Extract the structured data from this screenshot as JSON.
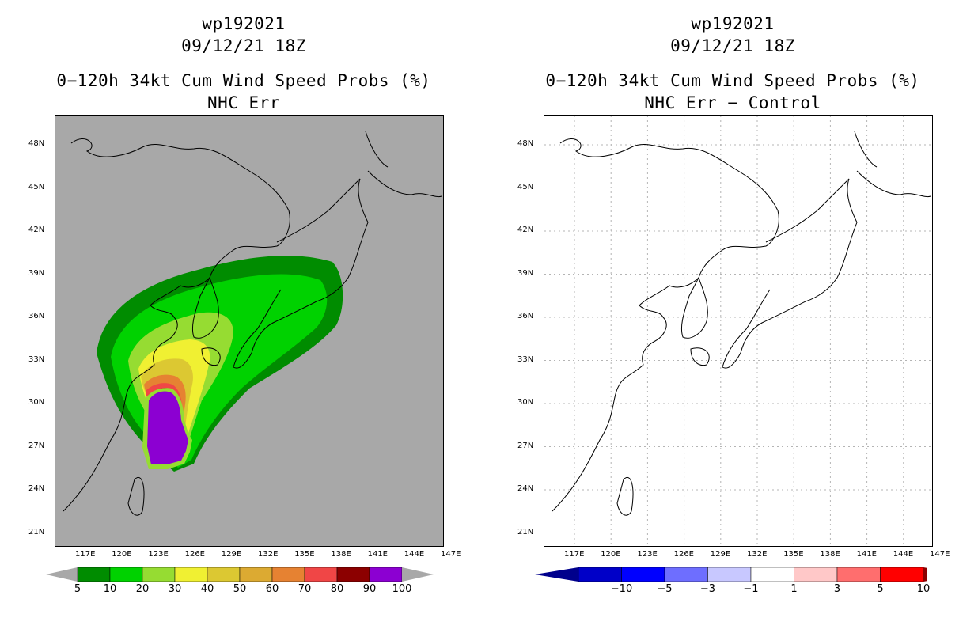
{
  "left_panel": {
    "storm_id": "wp192021",
    "datetime": "09/12/21 18Z",
    "title": "0−120h 34kt Cum Wind Speed Probs (%)",
    "subtitle": "NHC Err",
    "background": "#a8a8a8",
    "colorbar": {
      "colors": [
        "#008c00",
        "#00d200",
        "#96dc32",
        "#f0f032",
        "#dcc832",
        "#dcaa32",
        "#e68232",
        "#f04646",
        "#8c0000",
        "#8c00d2"
      ],
      "labels": [
        "5",
        "10",
        "20",
        "30",
        "40",
        "50",
        "60",
        "70",
        "80",
        "90",
        "100"
      ],
      "end_color": "#a8a8a8"
    }
  },
  "right_panel": {
    "storm_id": "wp192021",
    "datetime": "09/12/21 18Z",
    "title": "0−120h 34kt Cum Wind Speed Probs (%)",
    "subtitle": "NHC Err − Control",
    "background": "#ffffff",
    "colorbar": {
      "colors": [
        "#0000c8",
        "#0000ff",
        "#6e6eff",
        "#c8c8ff",
        "#ffffff",
        "#ffc8c8",
        "#ff6e6e",
        "#ff0000"
      ],
      "labels": [
        "−10",
        "−5",
        "−3",
        "−1",
        "1",
        "3",
        "5",
        "10"
      ],
      "end_low": "#00008c",
      "end_high": "#8c0000"
    }
  },
  "axes": {
    "lat_labels": [
      "48N",
      "45N",
      "42N",
      "39N",
      "36N",
      "33N",
      "30N",
      "27N",
      "24N",
      "21N"
    ],
    "lon_labels": [
      "117E",
      "120E",
      "123E",
      "126E",
      "129E",
      "132E",
      "135E",
      "138E",
      "141E",
      "144E",
      "147E"
    ]
  }
}
